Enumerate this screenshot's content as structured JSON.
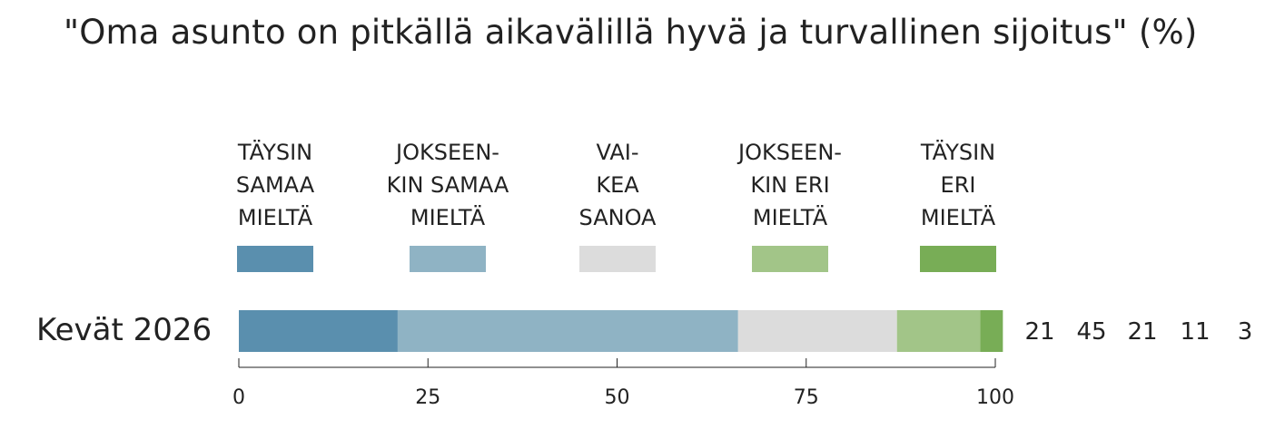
{
  "chart_data": {
    "type": "bar",
    "orientation": "horizontal-stacked",
    "title": "\"Oma asunto on pitkällä aikavälillä hyvä ja turvallinen sijoitus\" (%)",
    "categories": [
      "Kevät 2026"
    ],
    "series": [
      {
        "name": "TÄYSIN\nSAMAA\nMIELTÄ",
        "values": [
          21
        ],
        "color": "#5a8fae"
      },
      {
        "name": "JOKSEEN-\nKIN SAMAA\nMIELTÄ",
        "values": [
          45
        ],
        "color": "#8fb3c4"
      },
      {
        "name": "VAI-\nKEA\nSANOA",
        "values": [
          21
        ],
        "color": "#dcdcdc"
      },
      {
        "name": "JOKSEEN-\nKIN ERI\nMIELTÄ",
        "values": [
          11
        ],
        "color": "#a2c588"
      },
      {
        "name": "TÄYSIN\nERI\nMIELTÄ",
        "values": [
          3
        ],
        "color": "#78ad56"
      }
    ],
    "value_labels": [
      "21",
      "45",
      "21",
      "11",
      "3"
    ],
    "xlim": [
      0,
      100
    ],
    "xticks": [
      "0",
      "25",
      "50",
      "75",
      "100"
    ],
    "legend_position": "top",
    "grid": false
  }
}
